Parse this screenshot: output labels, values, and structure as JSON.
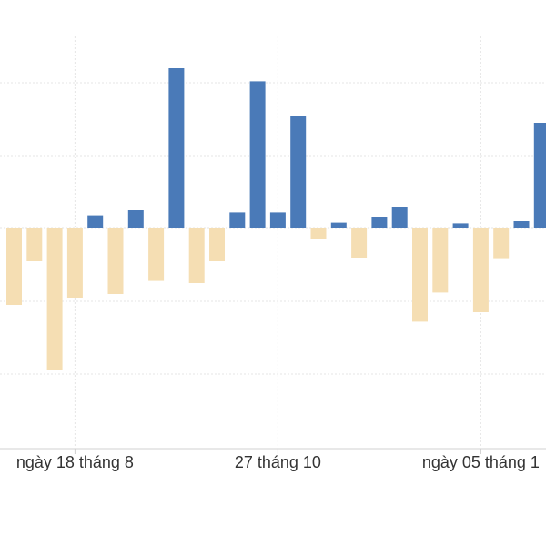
{
  "chart_data": {
    "type": "bar",
    "x_tick_labels": [
      "ngày 18 tháng 8",
      "27 tháng 10",
      "ngày 05 tháng 1"
    ],
    "tick_bar_index": [
      3,
      13,
      23
    ],
    "values": [
      -1.05,
      -0.45,
      -1.95,
      -0.95,
      0.18,
      -0.9,
      0.25,
      -0.72,
      2.2,
      -0.75,
      -0.45,
      0.22,
      2.02,
      0.22,
      1.55,
      -0.15,
      0.08,
      -0.4,
      0.15,
      0.3,
      -1.28,
      -0.88,
      0.07,
      -1.15,
      -0.42,
      0.1,
      1.45
    ],
    "ylim": [
      -3.0,
      3.0
    ],
    "y_gridlines": [
      -2.0,
      -1.0,
      0.0,
      1.0,
      2.0
    ],
    "grid": true,
    "colors": {
      "positive": "#4a7ab8",
      "negative": "#f5deb3",
      "grid": "#e6e6e6",
      "axis": "#d0d0d0"
    }
  }
}
